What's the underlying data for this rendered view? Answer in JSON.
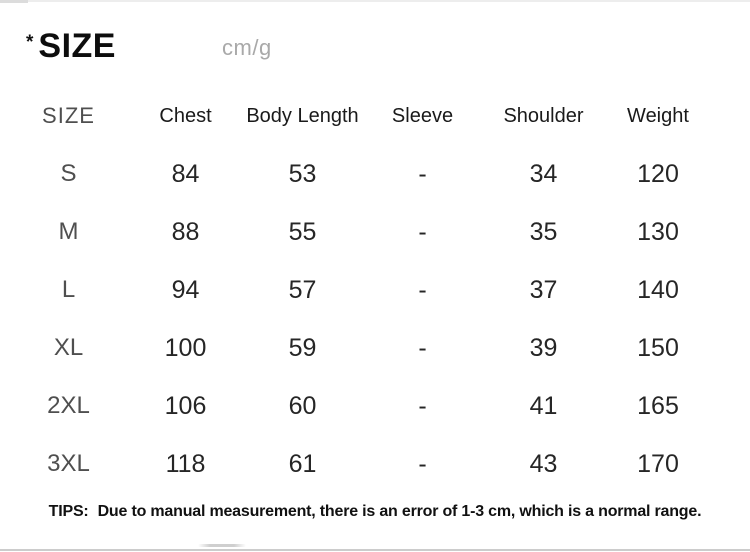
{
  "header": {
    "mark": "*",
    "title": "SIZE",
    "unit": "cm/g"
  },
  "chart_data": {
    "type": "table",
    "title": "SIZE",
    "unit": "cm/g",
    "columns": [
      "SIZE",
      "Chest",
      "Body Length",
      "Sleeve",
      "Shoulder",
      "Weight"
    ],
    "rows": [
      [
        "S",
        "84",
        "53",
        "-",
        "34",
        "120"
      ],
      [
        "M",
        "88",
        "55",
        "-",
        "35",
        "130"
      ],
      [
        "L",
        "94",
        "57",
        "-",
        "37",
        "140"
      ],
      [
        "XL",
        "100",
        "59",
        "-",
        "39",
        "150"
      ],
      [
        "2XL",
        "106",
        "60",
        "-",
        "41",
        "165"
      ],
      [
        "3XL",
        "118",
        "61",
        "-",
        "43",
        "170"
      ]
    ]
  },
  "tips": {
    "label": "TIPS:",
    "text": "Due to manual measurement, there is an error of 1-3 cm, which is a normal range."
  },
  "colors": {
    "title_text": "#0d0d0d",
    "unit_text": "#a9a9a9",
    "header_text": "#1a1a1a",
    "size_column_text": "#4f4f4f",
    "value_text": "#262626"
  }
}
